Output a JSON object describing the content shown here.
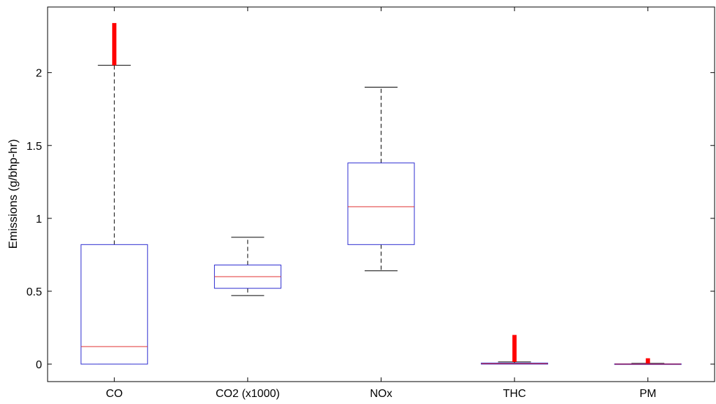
{
  "chart_data": {
    "type": "boxplot",
    "title": "",
    "xlabel": "",
    "ylabel": "Emissions (g/bhp-hr)",
    "ylim": [
      -0.12,
      2.45
    ],
    "yticks": [
      0,
      0.5,
      1,
      1.5,
      2
    ],
    "ytick_labels": [
      "0",
      "0.5",
      "1",
      "1.5",
      "2"
    ],
    "categories": [
      "CO",
      "CO2 (x1000)",
      "NOx",
      "THC",
      "PM"
    ],
    "boxes": [
      {
        "category": "CO",
        "whisker_low": 0.0,
        "q1": 0.0,
        "median": 0.12,
        "q3": 0.82,
        "whisker_high": 2.05,
        "outliers_range": [
          2.05,
          2.34
        ]
      },
      {
        "category": "CO2 (x1000)",
        "whisker_low": 0.47,
        "q1": 0.52,
        "median": 0.6,
        "q3": 0.68,
        "whisker_high": 0.87,
        "outliers_range": []
      },
      {
        "category": "NOx",
        "whisker_low": 0.64,
        "q1": 0.82,
        "median": 1.08,
        "q3": 1.38,
        "whisker_high": 1.9,
        "outliers_range": []
      },
      {
        "category": "THC",
        "whisker_low": 0.0,
        "q1": 0.0,
        "median": 0.003,
        "q3": 0.007,
        "whisker_high": 0.015,
        "outliers_range": [
          0.015,
          0.2
        ]
      },
      {
        "category": "PM",
        "whisker_low": 0.0,
        "q1": 0.0,
        "median": 0.0,
        "q3": 0.002,
        "whisker_high": 0.005,
        "outliers_range": [
          0.005,
          0.04
        ]
      }
    ],
    "colors": {
      "box": "#2b2bd0",
      "median": "#e03030",
      "whisker": "#000000",
      "outlier": "#ff0000"
    },
    "grid": false,
    "legend": "none"
  }
}
